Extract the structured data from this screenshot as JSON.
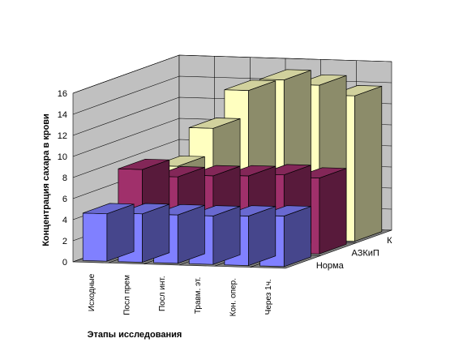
{
  "chart_data": {
    "type": "bar",
    "subtype": "3d-column",
    "ylabel": "Концентрация сахара в крови",
    "xlabel": "Этапы исследования",
    "ylim": [
      0,
      16
    ],
    "yticks": [
      0,
      2,
      4,
      6,
      8,
      10,
      12,
      14,
      16
    ],
    "grid": true,
    "categories": [
      "Исходные",
      "Посл прем",
      "Посл инт.",
      "Травм. эт.",
      "Кон. опер.",
      "Через 1ч."
    ],
    "series": [
      {
        "name": "Норма",
        "values": [
          4.5,
          4.6,
          4.6,
          4.6,
          4.7,
          4.8
        ],
        "color": "#8080ff"
      },
      {
        "name": "АЗКиП",
        "values": [
          7.5,
          6.9,
          7.1,
          7.2,
          7.4,
          7.2
        ],
        "color": "#a0306b"
      },
      {
        "name": "К",
        "values": [
          6.6,
          10.3,
          14.0,
          15.1,
          14.7,
          13.8
        ],
        "color": "#ffffc0"
      }
    ]
  }
}
